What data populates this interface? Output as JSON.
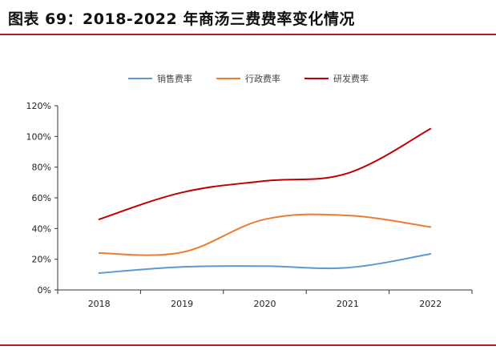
{
  "title": "图表 69：2018-2022 年商汤三费费率变化情况",
  "colors": {
    "accent": "#b21f24",
    "sales": "#5b9bd5",
    "admin": "#ed7d31",
    "rd": "#c00000"
  },
  "chart_data": {
    "type": "line",
    "title": "",
    "xlabel": "",
    "ylabel": "",
    "categories": [
      "2018",
      "2019",
      "2020",
      "2021",
      "2022"
    ],
    "ylim": [
      0,
      120
    ],
    "yticks": [
      0,
      20,
      40,
      60,
      80,
      100,
      120
    ],
    "ytick_labels": [
      "0%",
      "20%",
      "40%",
      "60%",
      "80%",
      "100%",
      "120%"
    ],
    "legend_position": "top-center",
    "grid": false,
    "series": [
      {
        "name": "销售费率",
        "color": "#5b9bd5",
        "values": [
          11,
          15,
          15.5,
          14.5,
          23.5
        ]
      },
      {
        "name": "行政费率",
        "color": "#ed7d31",
        "values": [
          24,
          24.5,
          46,
          48.5,
          41
        ]
      },
      {
        "name": "研发费率",
        "color": "#c00000",
        "values": [
          46,
          63.5,
          71,
          76,
          105
        ]
      }
    ]
  }
}
